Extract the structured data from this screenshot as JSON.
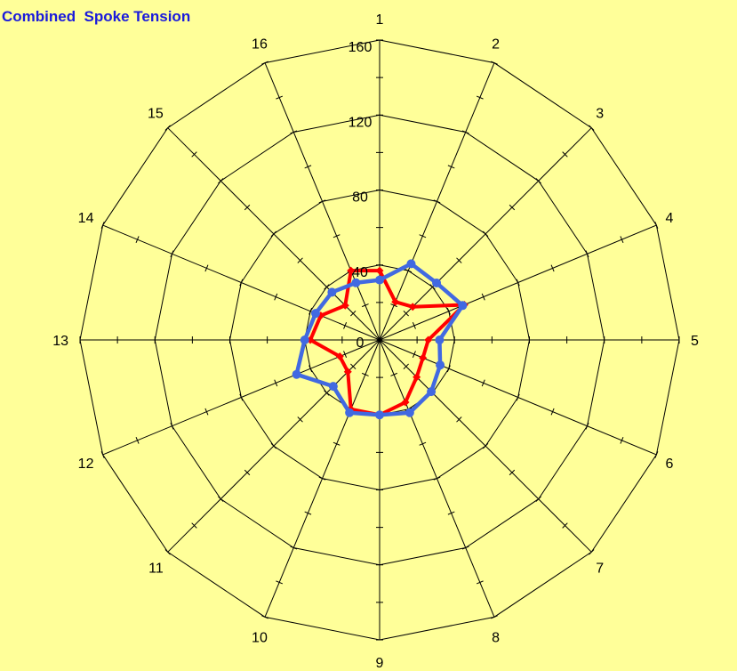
{
  "chart_data": {
    "type": "radar",
    "title": "Combined  Spoke Tension",
    "categories": [
      "1",
      "2",
      "3",
      "4",
      "5",
      "6",
      "7",
      "8",
      "9",
      "10",
      "11",
      "12",
      "13",
      "14",
      "15",
      "16"
    ],
    "radial_range": [
      0,
      160
    ],
    "radial_ticks": [
      "0",
      "40",
      "80",
      "120",
      "160"
    ],
    "radial_tick_values": [
      0,
      40,
      80,
      120,
      160
    ],
    "minor_tick_step": 20,
    "grid": true,
    "legend": "none",
    "series": [
      {
        "color": "#ff0000",
        "marker": "diamond",
        "values": [
          37,
          22,
          25,
          49,
          26,
          25,
          28,
          36,
          40,
          40,
          24,
          23,
          37,
          34,
          26,
          40
        ]
      },
      {
        "color": "#4169e1",
        "marker": "circle",
        "values": [
          32,
          44,
          43,
          48,
          32,
          35,
          39,
          42,
          40,
          42,
          35,
          48,
          40,
          37,
          36,
          33
        ]
      }
    ]
  }
}
